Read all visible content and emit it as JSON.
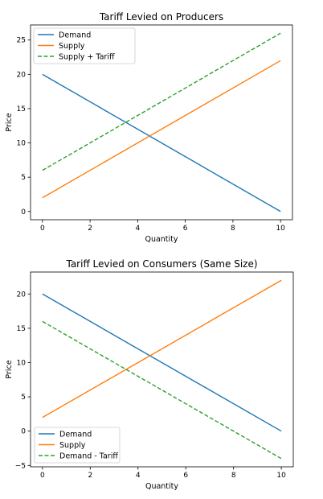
{
  "chart_data": [
    {
      "type": "line",
      "title": "Tariff Levied on Producers",
      "xlabel": "Quantity",
      "ylabel": "Price",
      "xlim": [
        -0.5,
        10.5
      ],
      "ylim": [
        -1.2,
        27.2
      ],
      "xticks": [
        0,
        2,
        4,
        6,
        8,
        10
      ],
      "yticks": [
        0,
        5,
        10,
        15,
        20,
        25
      ],
      "grid": false,
      "legend": "top-left",
      "series": [
        {
          "name": "Demand",
          "x": [
            0,
            10
          ],
          "y": [
            20,
            0
          ],
          "color": "#1f77b4",
          "dashed": false
        },
        {
          "name": "Supply",
          "x": [
            0,
            10
          ],
          "y": [
            2,
            22
          ],
          "color": "#ff7f0e",
          "dashed": false
        },
        {
          "name": "Supply + Tariff",
          "x": [
            0,
            10
          ],
          "y": [
            6,
            26
          ],
          "color": "#2ca02c",
          "dashed": true
        }
      ]
    },
    {
      "type": "line",
      "title": "Tariff Levied on Consumers (Same Size)",
      "xlabel": "Quantity",
      "ylabel": "Price",
      "xlim": [
        -0.5,
        10.5
      ],
      "ylim": [
        -5.2,
        23.2
      ],
      "xticks": [
        0,
        2,
        4,
        6,
        8,
        10
      ],
      "yticks": [
        -5,
        0,
        5,
        10,
        15,
        20
      ],
      "grid": false,
      "legend": "bottom-left",
      "series": [
        {
          "name": "Demand",
          "x": [
            0,
            10
          ],
          "y": [
            20,
            0
          ],
          "color": "#1f77b4",
          "dashed": false
        },
        {
          "name": "Supply",
          "x": [
            0,
            10
          ],
          "y": [
            2,
            22
          ],
          "color": "#ff7f0e",
          "dashed": false
        },
        {
          "name": "Demand - Tariff",
          "x": [
            0,
            10
          ],
          "y": [
            16,
            -4
          ],
          "color": "#2ca02c",
          "dashed": true
        }
      ]
    }
  ]
}
